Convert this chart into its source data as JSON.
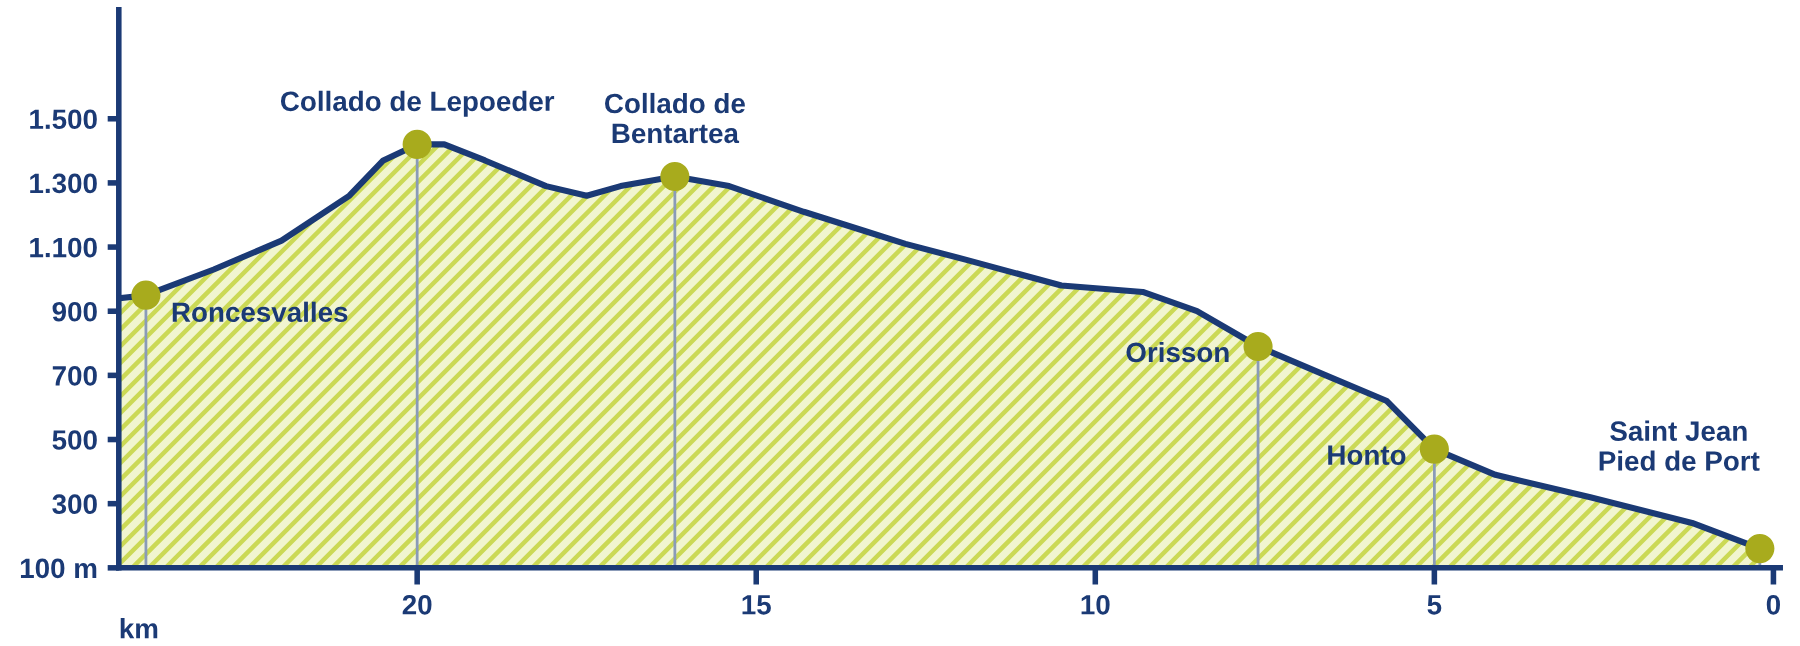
{
  "chart_data": {
    "type": "area",
    "xlabel": "km",
    "xlim": [
      24.4,
      -0.1
    ],
    "xticks": [
      20,
      15,
      10,
      5,
      0
    ],
    "ylim": [
      100,
      1840
    ],
    "yticks": [
      {
        "value": 100,
        "label": "100 m"
      },
      300,
      500,
      700,
      900,
      {
        "value": 1100,
        "label": "1.100"
      },
      {
        "value": 1300,
        "label": "1.300"
      },
      {
        "value": 1500,
        "label": "1.500"
      }
    ],
    "grid": false,
    "legend": false,
    "series": [
      {
        "color": "#1b3a75",
        "x": [
          24.4,
          24.0,
          23.0,
          22.0,
          21.0,
          20.5,
          20.0,
          19.6,
          19.0,
          18.1,
          17.5,
          17.0,
          16.2,
          15.4,
          14.3,
          13.4,
          12.8,
          11.9,
          10.5,
          9.3,
          8.5,
          7.6,
          6.6,
          5.7,
          5.0,
          4.1,
          2.7,
          1.2,
          0.2
        ],
        "values": [
          940,
          950,
          1030,
          1120,
          1260,
          1370,
          1420,
          1420,
          1370,
          1290,
          1260,
          1290,
          1320,
          1290,
          1210,
          1150,
          1110,
          1060,
          980,
          960,
          900,
          790,
          700,
          620,
          470,
          390,
          320,
          240,
          160
        ]
      },
      {
        "type": "lollipop",
        "color": "#a8ab1d",
        "marker": "circle",
        "x": [
          24.0,
          20.0,
          16.2,
          7.6,
          5.0,
          0.2
        ],
        "values": [
          950,
          1420,
          1320,
          790,
          470,
          160
        ]
      }
    ],
    "annotations": [
      {
        "text": "Roncesvalles",
        "x": 24.0,
        "y": 950
      },
      {
        "text": "Collado de Lepoeder",
        "x": 20.0,
        "y": 1420
      },
      {
        "text": "Collado de\nBentartea",
        "x": 16.2,
        "y": 1320
      },
      {
        "text": "Orisson",
        "x": 7.6,
        "y": 790
      },
      {
        "text": "Honto",
        "x": 5.0,
        "y": 470
      },
      {
        "text": "Saint Jean\nPied de Port",
        "x": 0.2,
        "y": 160
      }
    ]
  }
}
